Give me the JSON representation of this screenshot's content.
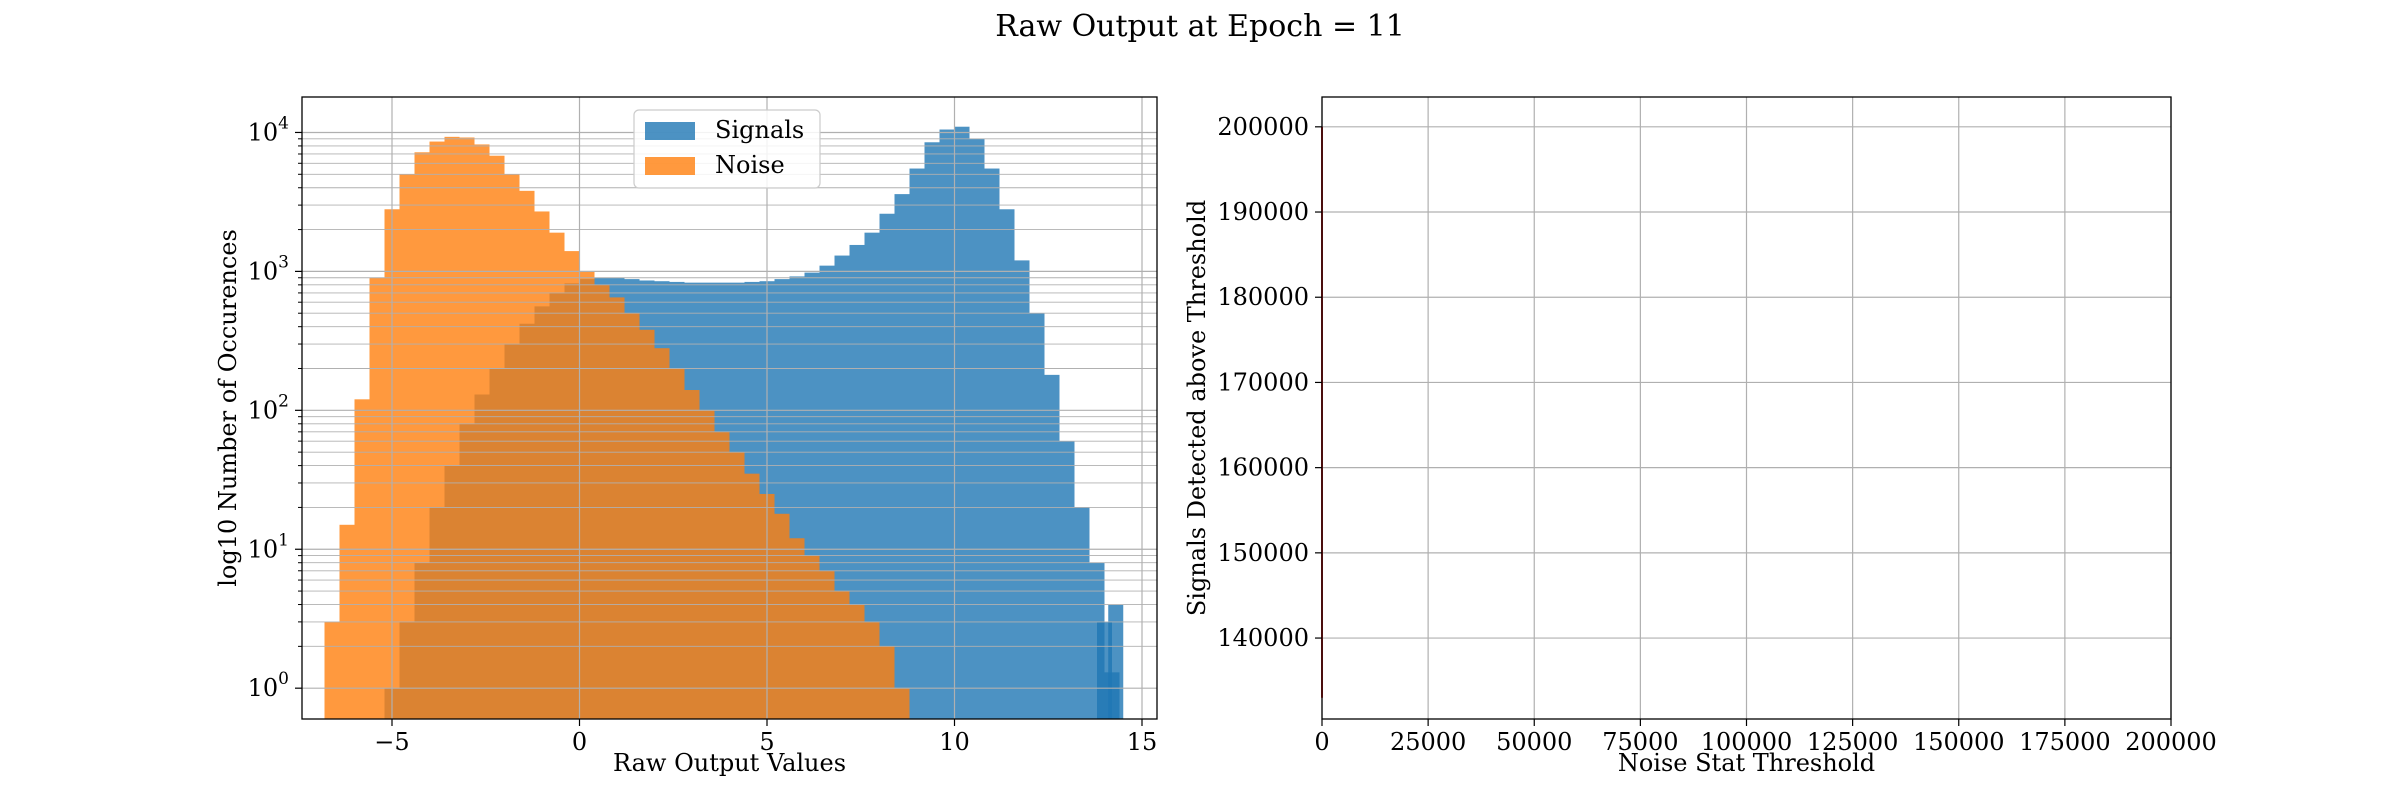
{
  "figure": {
    "suptitle": "Raw Output at Epoch = 11"
  },
  "colors": {
    "signals": "#1f77b4",
    "noise": "#ff7f0e",
    "grid": "#b0b0b0",
    "threshold_line": "#d62728",
    "axes": "#000000"
  },
  "chart_data": [
    {
      "type": "bar",
      "subtype": "histogram",
      "title": "",
      "xlabel": "Raw Output Values",
      "ylabel": "log10 Number of Occurences",
      "xlim": [
        -7.4,
        15.4
      ],
      "ylim": [
        0.6,
        18000
      ],
      "yscale": "log",
      "xticks": [
        -5,
        0,
        5,
        10,
        15
      ],
      "xtick_labels": [
        "−5",
        "0",
        "5",
        "10",
        "15"
      ],
      "yticks": [
        1,
        10,
        100,
        1000,
        10000
      ],
      "ytick_labels": [
        {
          "base": "10",
          "exp": "0"
        },
        {
          "base": "10",
          "exp": "1"
        },
        {
          "base": "10",
          "exp": "2"
        },
        {
          "base": "10",
          "exp": "3"
        },
        {
          "base": "10",
          "exp": "4"
        }
      ],
      "grid": true,
      "grid_minor_y": true,
      "legend": {
        "position": "top-center",
        "entries": [
          "Signals",
          "Noise"
        ]
      },
      "series": [
        {
          "name": "Signals",
          "bin_width": 0.2,
          "points": [
            [
              -5.0,
              1
            ],
            [
              -4.6,
              3
            ],
            [
              -4.2,
              8
            ],
            [
              -3.8,
              20
            ],
            [
              -3.4,
              40
            ],
            [
              -3.0,
              80
            ],
            [
              -2.6,
              130
            ],
            [
              -2.2,
              200
            ],
            [
              -1.8,
              300
            ],
            [
              -1.4,
              420
            ],
            [
              -1.0,
              560
            ],
            [
              -0.6,
              700
            ],
            [
              -0.2,
              820
            ],
            [
              0.2,
              880
            ],
            [
              0.6,
              900
            ],
            [
              1.0,
              900
            ],
            [
              1.4,
              880
            ],
            [
              1.8,
              860
            ],
            [
              2.2,
              850
            ],
            [
              2.6,
              840
            ],
            [
              3.0,
              830
            ],
            [
              3.4,
              830
            ],
            [
              3.8,
              830
            ],
            [
              4.2,
              830
            ],
            [
              4.6,
              840
            ],
            [
              5.0,
              850
            ],
            [
              5.4,
              880
            ],
            [
              5.8,
              920
            ],
            [
              6.2,
              980
            ],
            [
              6.6,
              1100
            ],
            [
              7.0,
              1300
            ],
            [
              7.4,
              1550
            ],
            [
              7.8,
              1900
            ],
            [
              8.2,
              2600
            ],
            [
              8.6,
              3600
            ],
            [
              9.0,
              5500
            ],
            [
              9.4,
              8500
            ],
            [
              9.8,
              10500
            ],
            [
              10.2,
              11000
            ],
            [
              10.6,
              9000
            ],
            [
              11.0,
              5500
            ],
            [
              11.4,
              2800
            ],
            [
              11.8,
              1200
            ],
            [
              12.2,
              500
            ],
            [
              12.6,
              180
            ],
            [
              13.0,
              60
            ],
            [
              13.4,
              20
            ],
            [
              13.8,
              8
            ],
            [
              14.0,
              3
            ],
            [
              14.2,
              1.3
            ],
            [
              14.3,
              4
            ]
          ]
        },
        {
          "name": "Noise",
          "bin_width": 0.2,
          "points": [
            [
              -6.6,
              3
            ],
            [
              -6.2,
              15
            ],
            [
              -5.8,
              120
            ],
            [
              -5.4,
              900
            ],
            [
              -5.0,
              2800
            ],
            [
              -4.6,
              5000
            ],
            [
              -4.2,
              7200
            ],
            [
              -3.8,
              8600
            ],
            [
              -3.4,
              9300
            ],
            [
              -3.0,
              9200
            ],
            [
              -2.6,
              8200
            ],
            [
              -2.2,
              6800
            ],
            [
              -1.8,
              5000
            ],
            [
              -1.4,
              3800
            ],
            [
              -1.0,
              2700
            ],
            [
              -0.6,
              1900
            ],
            [
              -0.2,
              1400
            ],
            [
              0.2,
              1000
            ],
            [
              0.6,
              800
            ],
            [
              1.0,
              650
            ],
            [
              1.4,
              500
            ],
            [
              1.8,
              380
            ],
            [
              2.2,
              280
            ],
            [
              2.6,
              200
            ],
            [
              3.0,
              140
            ],
            [
              3.4,
              100
            ],
            [
              3.8,
              70
            ],
            [
              4.2,
              50
            ],
            [
              4.6,
              35
            ],
            [
              5.0,
              25
            ],
            [
              5.4,
              18
            ],
            [
              5.8,
              12
            ],
            [
              6.2,
              9
            ],
            [
              6.6,
              7
            ],
            [
              7.0,
              5
            ],
            [
              7.4,
              4
            ],
            [
              7.8,
              3
            ],
            [
              8.2,
              2
            ],
            [
              8.6,
              1
            ]
          ]
        }
      ]
    },
    {
      "type": "line",
      "title": "",
      "xlabel": "Noise Stat Threshold",
      "ylabel": "Signals Detected above Threshold",
      "xlim": [
        0,
        200000
      ],
      "ylim": [
        130500,
        203500
      ],
      "xticks": [
        0,
        25000,
        50000,
        75000,
        100000,
        125000,
        150000,
        175000,
        200000
      ],
      "xtick_labels": [
        "0",
        "25000",
        "50000",
        "75000",
        "100000",
        "125000",
        "150000",
        "175000",
        "200000"
      ],
      "yticks": [
        140000,
        150000,
        160000,
        170000,
        180000,
        190000,
        200000
      ],
      "ytick_labels": [
        "140000",
        "150000",
        "160000",
        "170000",
        "180000",
        "190000",
        "200000"
      ],
      "grid": true,
      "series": [
        {
          "points": [
            [
              0,
              200000
            ],
            [
              0,
              133000
            ]
          ]
        }
      ]
    }
  ]
}
